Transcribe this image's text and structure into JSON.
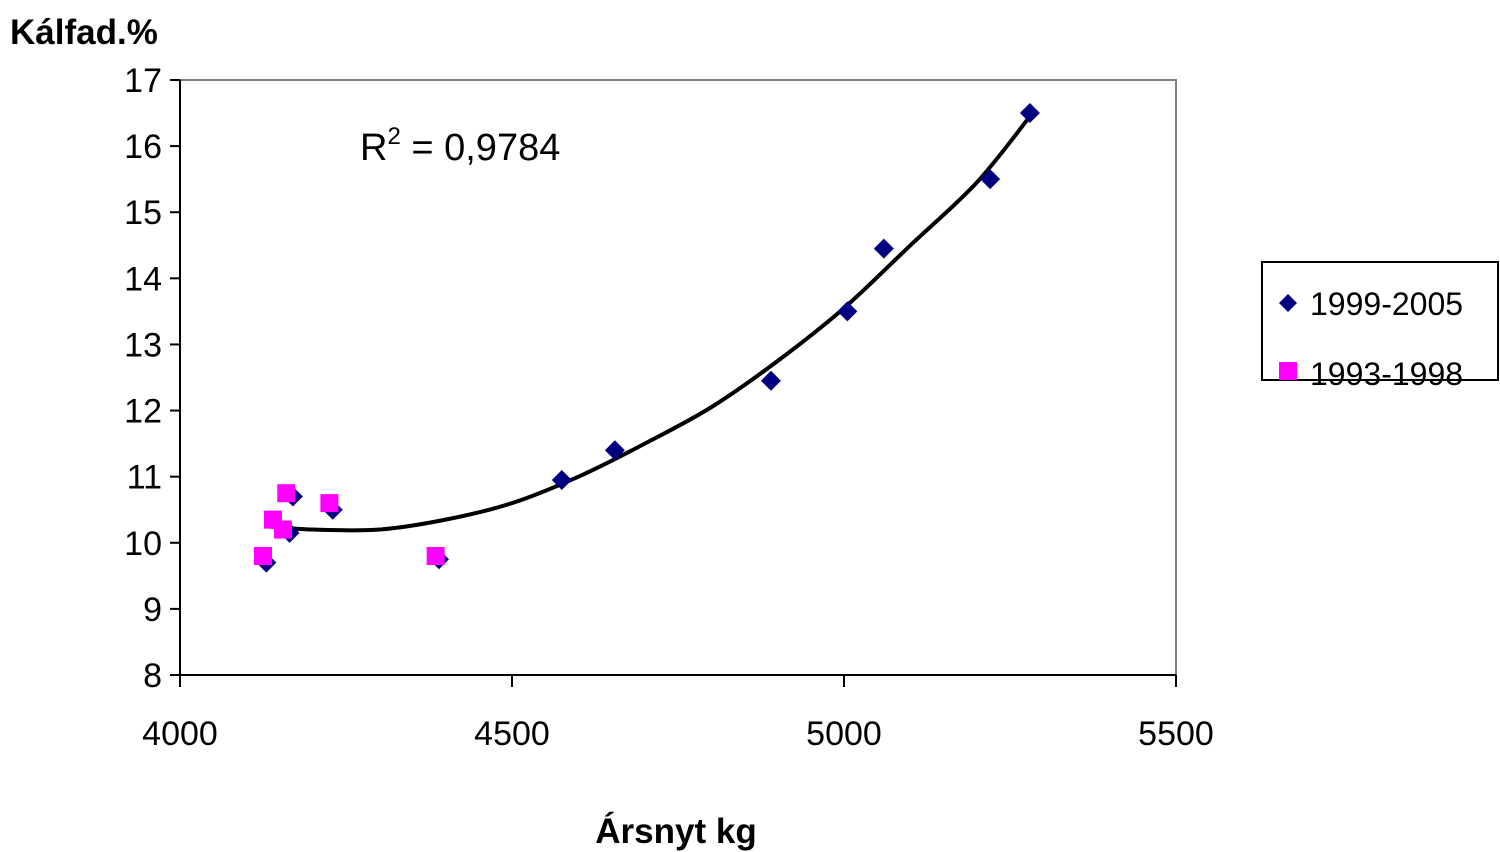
{
  "chart_data": {
    "type": "scatter",
    "ylabel": "Kálfad.%",
    "xlabel": "Ársnyt kg",
    "xlim": [
      4000,
      5500
    ],
    "ylim": [
      8,
      17
    ],
    "x_ticks": [
      4000,
      4500,
      5000,
      5500
    ],
    "y_ticks": [
      8,
      9,
      10,
      11,
      12,
      13,
      14,
      15,
      16,
      17
    ],
    "x_tick_labels": [
      "4000",
      "4500",
      "5000",
      "5500"
    ],
    "y_tick_labels": [
      "8",
      "9",
      "10",
      "11",
      "12",
      "13",
      "14",
      "15",
      "16",
      "17"
    ],
    "grid": false,
    "legend_position": "right",
    "series": [
      {
        "name": "1999-2005",
        "marker": "diamond",
        "color": "#000080",
        "points": [
          {
            "x": 4130,
            "y": 9.7
          },
          {
            "x": 4165,
            "y": 10.15
          },
          {
            "x": 4170,
            "y": 10.7
          },
          {
            "x": 4230,
            "y": 10.5
          },
          {
            "x": 4390,
            "y": 9.75
          },
          {
            "x": 4575,
            "y": 10.95
          },
          {
            "x": 4655,
            "y": 11.4
          },
          {
            "x": 4890,
            "y": 12.45
          },
          {
            "x": 5005,
            "y": 13.5
          },
          {
            "x": 5060,
            "y": 14.45
          },
          {
            "x": 5220,
            "y": 15.5
          },
          {
            "x": 5280,
            "y": 16.5
          }
        ]
      },
      {
        "name": "1993-1998",
        "marker": "square",
        "color": "#FF00FF",
        "points": [
          {
            "x": 4125,
            "y": 9.8
          },
          {
            "x": 4140,
            "y": 10.35
          },
          {
            "x": 4155,
            "y": 10.2
          },
          {
            "x": 4160,
            "y": 10.75
          },
          {
            "x": 4225,
            "y": 10.6
          },
          {
            "x": 4385,
            "y": 9.8
          }
        ]
      }
    ],
    "trendline": {
      "color": "#000000",
      "points": [
        {
          "x": 4130,
          "y": 10.25
        },
        {
          "x": 4200,
          "y": 10.2
        },
        {
          "x": 4300,
          "y": 10.2
        },
        {
          "x": 4400,
          "y": 10.35
        },
        {
          "x": 4500,
          "y": 10.6
        },
        {
          "x": 4600,
          "y": 11.0
        },
        {
          "x": 4700,
          "y": 11.5
        },
        {
          "x": 4800,
          "y": 12.05
        },
        {
          "x": 4900,
          "y": 12.75
        },
        {
          "x": 5000,
          "y": 13.55
        },
        {
          "x": 5100,
          "y": 14.5
        },
        {
          "x": 5200,
          "y": 15.45
        },
        {
          "x": 5280,
          "y": 16.45
        }
      ]
    },
    "annotation": {
      "base": "R",
      "sup": "2",
      "text": " = 0,9784"
    }
  }
}
